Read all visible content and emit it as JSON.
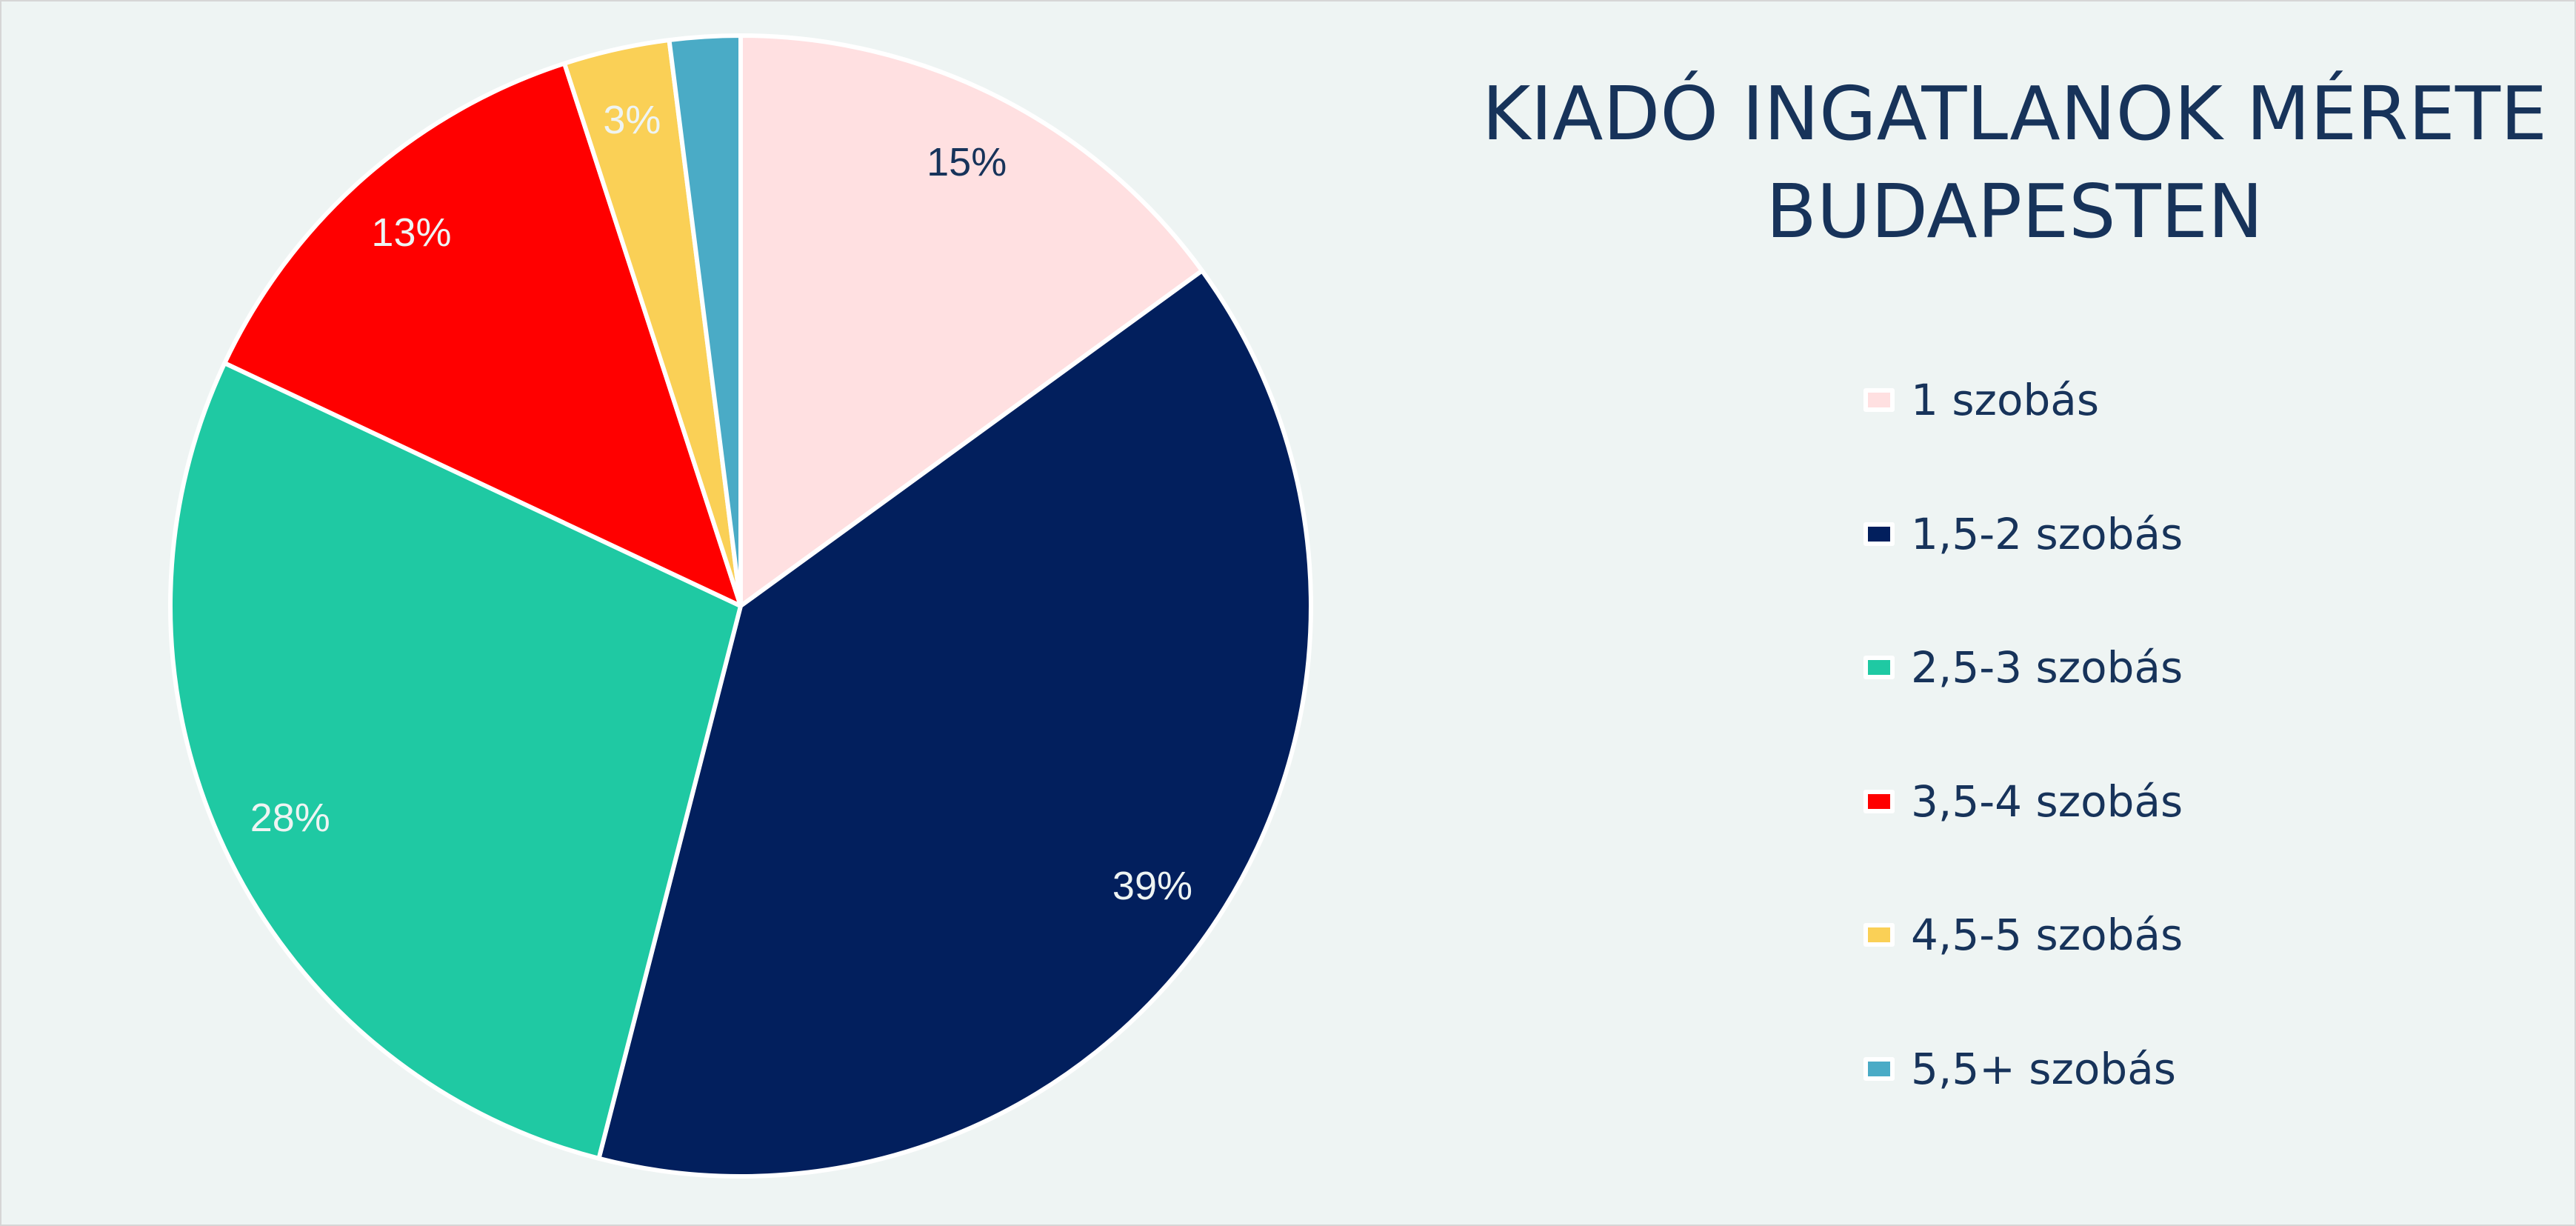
{
  "chart_data": {
    "type": "pie",
    "title": "KIADÓ INGATLANOK MÉRETE BUDAPESTEN",
    "title_lines": [
      "KIADÓ INGATLANOK MÉRETE",
      "BUDAPESTEN"
    ],
    "categories": [
      "1 szobás",
      "1,5-2 szobás",
      "2,5-3 szobás",
      "3,5-4 szobás",
      "4,5-5 szobás",
      "5,5+ szobás"
    ],
    "values": [
      15,
      39,
      28,
      13,
      3,
      2
    ],
    "data_labels": [
      "15%",
      "39%",
      "28%",
      "13%",
      "3%",
      ""
    ],
    "colors": [
      "#ffe0e1",
      "#021f5d",
      "#1fc9a3",
      "#ff0000",
      "#fad056",
      "#4aabc6"
    ],
    "label_colors": [
      "#17335a",
      "#eef4f3",
      "#eef4f3",
      "#eef4f3",
      "#eef4f3",
      "#eef4f3"
    ],
    "legend_position": "right",
    "unit": "%"
  }
}
